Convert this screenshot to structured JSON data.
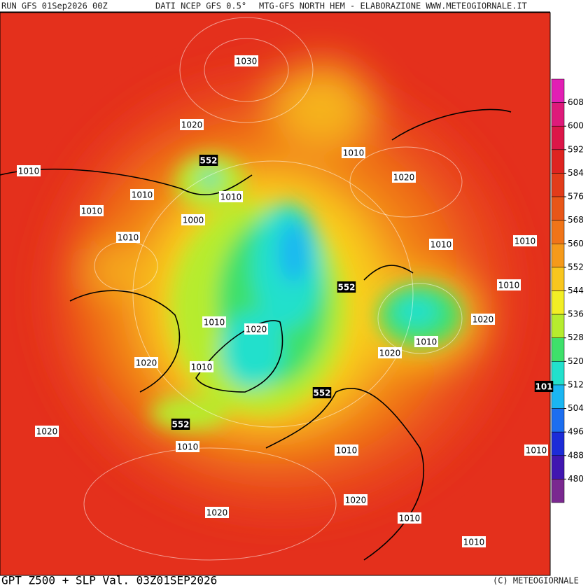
{
  "header": {
    "run": "RUN GFS 01Sep2026 00Z",
    "source": "DATI NCEP GFS 0.5°",
    "credit": "MTG-GFS NORTH HEM - ELABORAZIONE WWW.METEOGIORNALE.IT"
  },
  "footer": {
    "title": "GPT Z500 + SLP Val. 03Z01SEP2026",
    "copyright": "(C) METEOGIORNALE"
  },
  "colorbar": {
    "lim": [
      472,
      616
    ],
    "ticks": [
      608,
      600,
      592,
      584,
      576,
      568,
      560,
      552,
      544,
      536,
      528,
      520,
      512,
      504,
      496,
      488,
      480
    ],
    "colors": [
      "#e21fb4",
      "#de1a7a",
      "#dc1648",
      "#de2420",
      "#e23c1a",
      "#e85618",
      "#f07418",
      "#f59a1a",
      "#f8c61e",
      "#f2ee24",
      "#b6ec2e",
      "#3ee06a",
      "#22e0cc",
      "#1ab6f2",
      "#1c6ef0",
      "#1c2cd8",
      "#4016b0",
      "#7a2890"
    ]
  },
  "map": {
    "contour_labels": [
      1030,
      1020,
      552,
      1010,
      1010,
      1010,
      1010,
      1020,
      1010,
      1000,
      1010,
      1010,
      1010,
      552,
      1010,
      1020,
      1010,
      1020,
      1010,
      1020,
      1020,
      1010,
      552,
      101,
      552,
      1020,
      1010,
      1010,
      1010,
      1020,
      1020,
      1010,
      1010
    ]
  }
}
